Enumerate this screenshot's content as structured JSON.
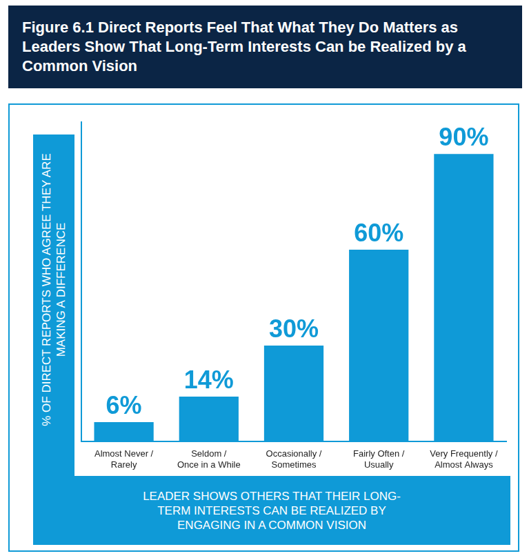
{
  "chart_data": {
    "type": "bar",
    "title": "Figure 6.1 Direct Reports Feel That What They Do Matters as Leaders Show That Long-Term Interests Can be Realized by a Common Vision",
    "xlabel": "LEADER SHOWS OTHERS THAT THEIR LONG-TERM INTERESTS CAN BE REALIZED BY ENGAGING IN A COMMON VISION",
    "ylabel": "% OF DIRECT REPORTS WHO AGREE THEY ARE MAKING A DIFFERENCE",
    "categories": [
      "Almost Never / Rarely",
      "Seldom / Once in a While",
      "Occasionally / Sometimes",
      "Fairly Often / Usually",
      "Very Frequently / Almost Always"
    ],
    "values": [
      6,
      14,
      30,
      60,
      90
    ],
    "value_labels": [
      "6%",
      "14%",
      "30%",
      "60%",
      "90%"
    ],
    "data_labels": true,
    "color": "#0f9ad7",
    "ylim": [
      0,
      100
    ],
    "grid": false,
    "tick_labels": "x"
  }
}
